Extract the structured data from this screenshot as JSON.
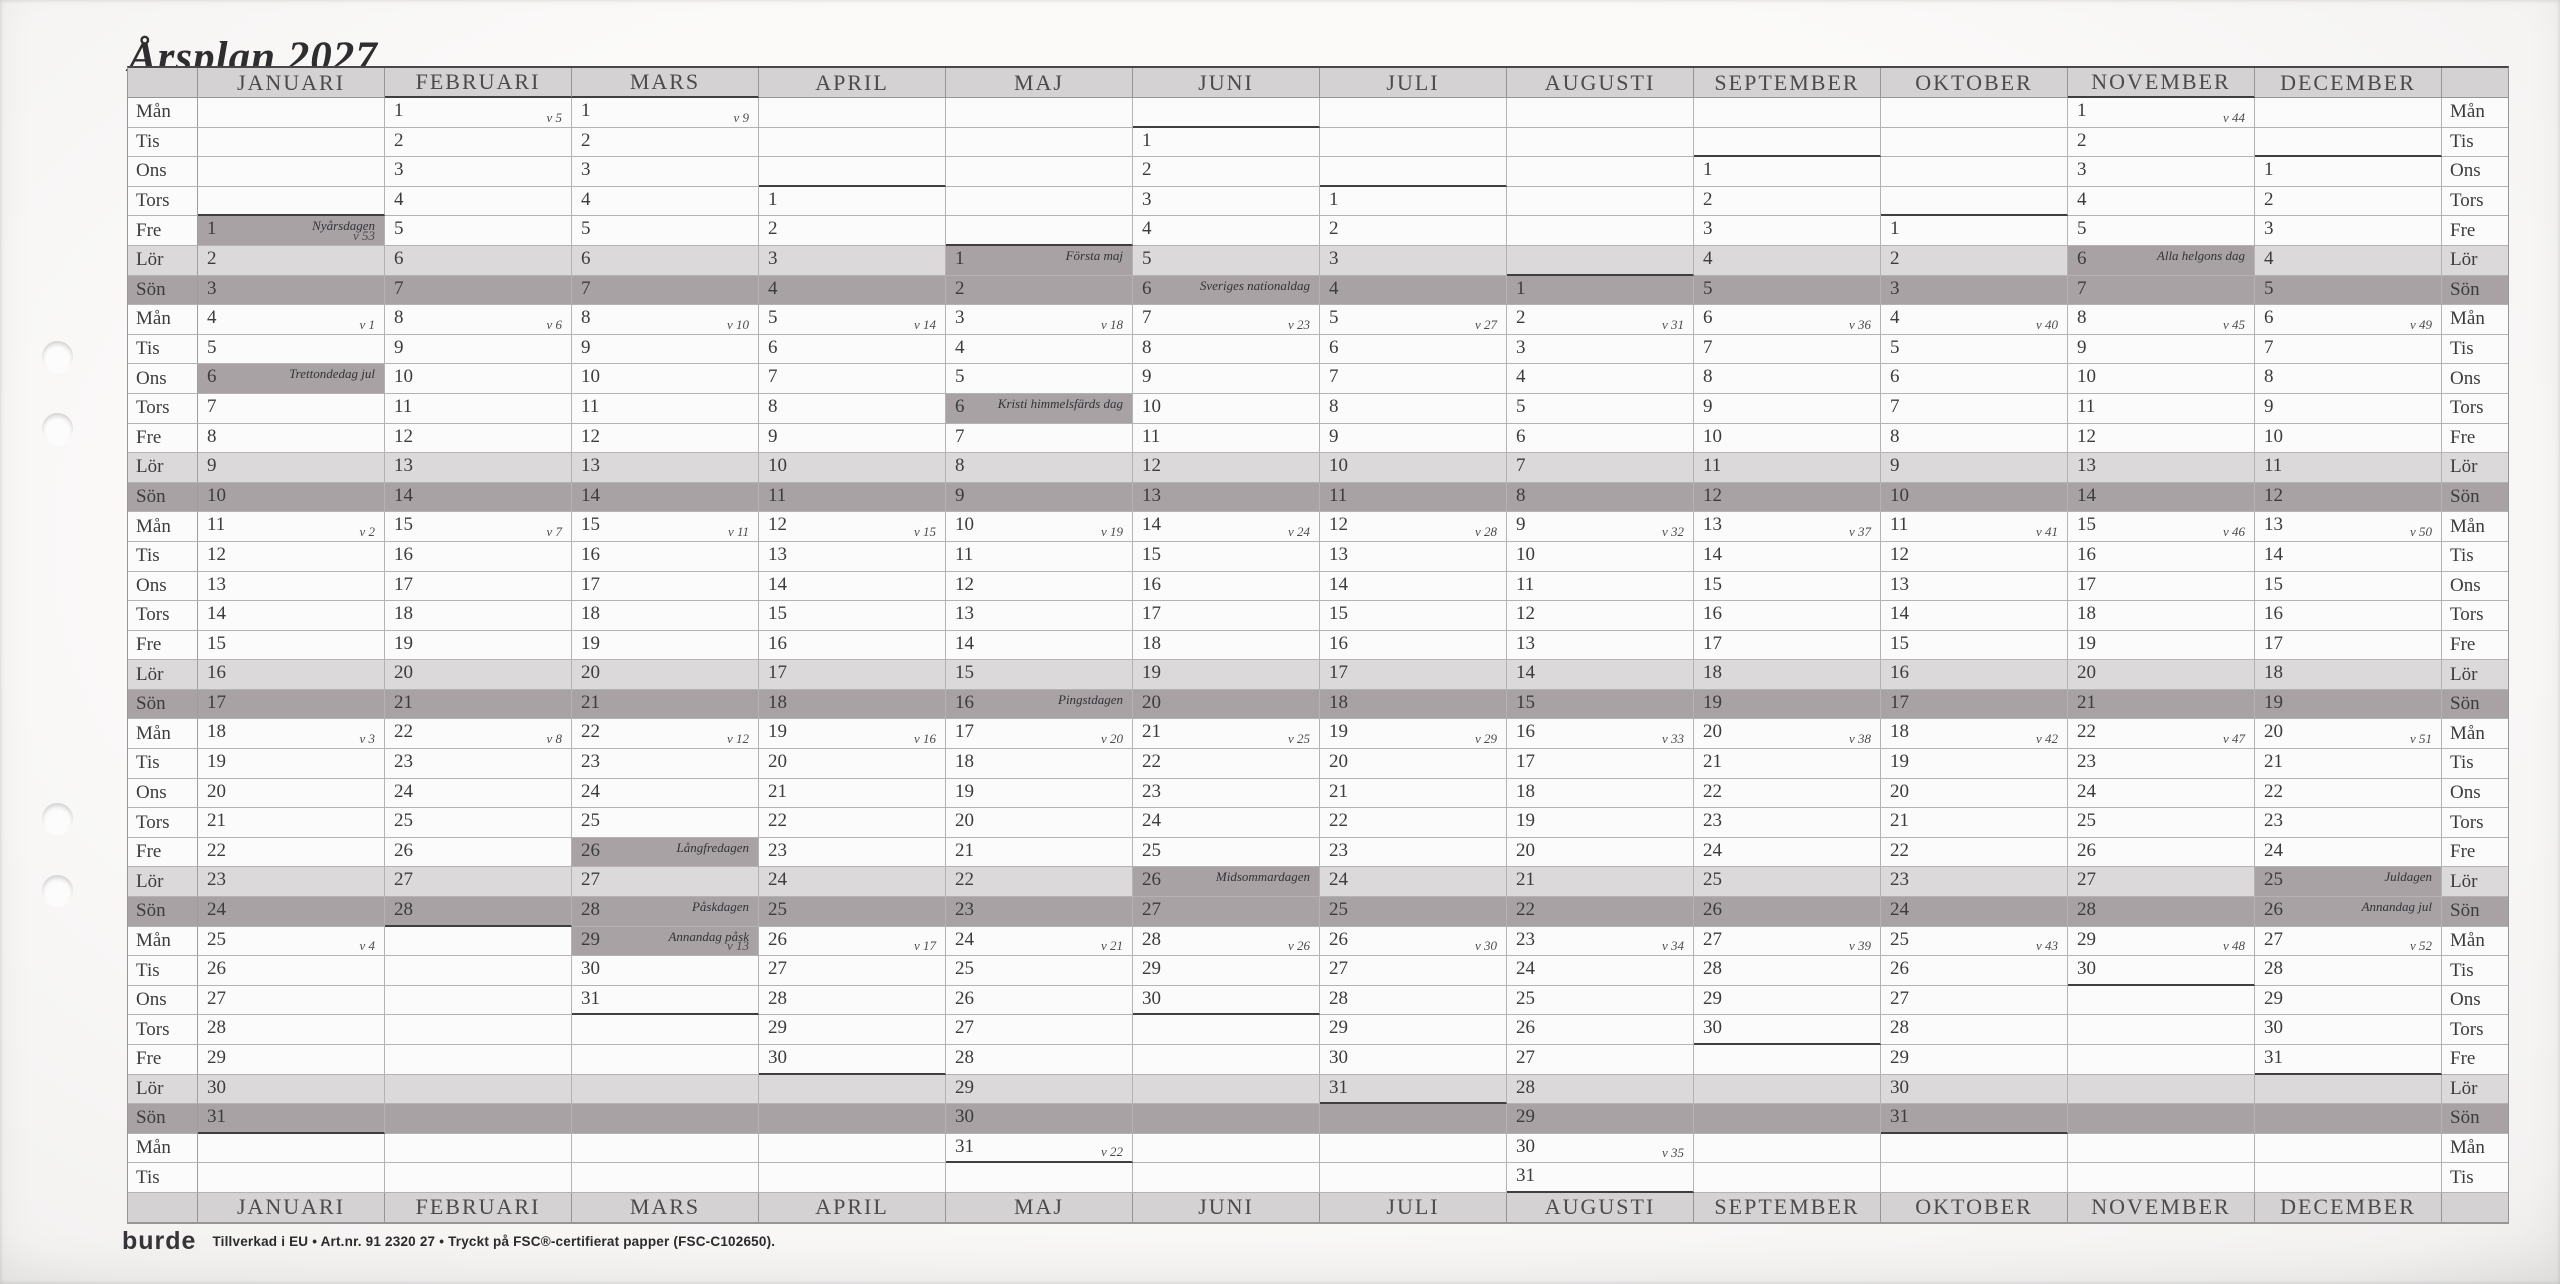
{
  "title": "Årsplan 2027",
  "months": [
    "JANUARI",
    "FEBRUARI",
    "MARS",
    "APRIL",
    "MAJ",
    "JUNI",
    "JULI",
    "AUGUSTI",
    "SEPTEMBER",
    "OKTOBER",
    "NOVEMBER",
    "DECEMBER"
  ],
  "weekdays": [
    "Mån",
    "Tis",
    "Ons",
    "Tors",
    "Fre",
    "Lör",
    "Sön"
  ],
  "calendar": {
    "num_day_rows": 37,
    "month_start_row": [
      5,
      1,
      1,
      4,
      6,
      2,
      4,
      7,
      3,
      5,
      1,
      3
    ],
    "days_in_month": [
      31,
      28,
      31,
      30,
      31,
      30,
      31,
      31,
      30,
      31,
      30,
      31
    ],
    "week_labels": [
      [
        1,
        1,
        "v 53"
      ],
      [
        1,
        4,
        "v 1"
      ],
      [
        1,
        11,
        "v 2"
      ],
      [
        1,
        18,
        "v 3"
      ],
      [
        1,
        25,
        "v 4"
      ],
      [
        2,
        1,
        "v 5"
      ],
      [
        2,
        8,
        "v 6"
      ],
      [
        2,
        15,
        "v 7"
      ],
      [
        2,
        22,
        "v 8"
      ],
      [
        3,
        1,
        "v 9"
      ],
      [
        3,
        8,
        "v 10"
      ],
      [
        3,
        15,
        "v 11"
      ],
      [
        3,
        22,
        "v 12"
      ],
      [
        3,
        29,
        "v 13"
      ],
      [
        4,
        5,
        "v 14"
      ],
      [
        4,
        12,
        "v 15"
      ],
      [
        4,
        19,
        "v 16"
      ],
      [
        4,
        26,
        "v 17"
      ],
      [
        5,
        3,
        "v 18"
      ],
      [
        5,
        10,
        "v 19"
      ],
      [
        5,
        17,
        "v 20"
      ],
      [
        5,
        24,
        "v 21"
      ],
      [
        5,
        31,
        "v 22"
      ],
      [
        6,
        7,
        "v 23"
      ],
      [
        6,
        14,
        "v 24"
      ],
      [
        6,
        21,
        "v 25"
      ],
      [
        6,
        28,
        "v 26"
      ],
      [
        7,
        5,
        "v 27"
      ],
      [
        7,
        12,
        "v 28"
      ],
      [
        7,
        19,
        "v 29"
      ],
      [
        7,
        26,
        "v 30"
      ],
      [
        8,
        2,
        "v 31"
      ],
      [
        8,
        9,
        "v 32"
      ],
      [
        8,
        16,
        "v 33"
      ],
      [
        8,
        23,
        "v 34"
      ],
      [
        8,
        30,
        "v 35"
      ],
      [
        9,
        6,
        "v 36"
      ],
      [
        9,
        13,
        "v 37"
      ],
      [
        9,
        20,
        "v 38"
      ],
      [
        9,
        27,
        "v 39"
      ],
      [
        10,
        4,
        "v 40"
      ],
      [
        10,
        11,
        "v 41"
      ],
      [
        10,
        18,
        "v 42"
      ],
      [
        10,
        25,
        "v 43"
      ],
      [
        11,
        1,
        "v 44"
      ],
      [
        11,
        8,
        "v 45"
      ],
      [
        11,
        15,
        "v 46"
      ],
      [
        11,
        22,
        "v 47"
      ],
      [
        11,
        29,
        "v 48"
      ],
      [
        12,
        6,
        "v 49"
      ],
      [
        12,
        13,
        "v 50"
      ],
      [
        12,
        20,
        "v 51"
      ],
      [
        12,
        27,
        "v 52"
      ]
    ],
    "holidays": [
      [
        1,
        1,
        "Nyårsdagen"
      ],
      [
        1,
        6,
        "Trettondedag jul"
      ],
      [
        3,
        26,
        "Långfredagen"
      ],
      [
        3,
        28,
        "Påskdagen"
      ],
      [
        3,
        29,
        "Annandag påsk"
      ],
      [
        5,
        1,
        "Första maj"
      ],
      [
        5,
        6,
        "Kristi himmelsfärds dag"
      ],
      [
        5,
        16,
        "Pingstdagen"
      ],
      [
        6,
        6,
        "Sveriges nationaldag"
      ],
      [
        6,
        26,
        "Midsommardagen"
      ],
      [
        11,
        6,
        "Alla helgons dag"
      ],
      [
        12,
        25,
        "Juldagen"
      ],
      [
        12,
        26,
        "Annandag jul"
      ]
    ]
  },
  "footer": {
    "brand": "burde",
    "info": "Tillverkad i EU  •  Art.nr. 91 2320 27 • Tryckt på FSC®-certifierat papper (FSC-C102650)."
  },
  "colors": {
    "header_bg": "#d4d2d3",
    "saturday_bg": "#dbd9da",
    "sunday_bg": "#a8a2a5",
    "holiday_bg": "#a8a2a5",
    "grid_line": "#b5b2b4",
    "strong_line": "#413e40",
    "paper": "#faf9f8",
    "text": "#3c3b3d"
  }
}
